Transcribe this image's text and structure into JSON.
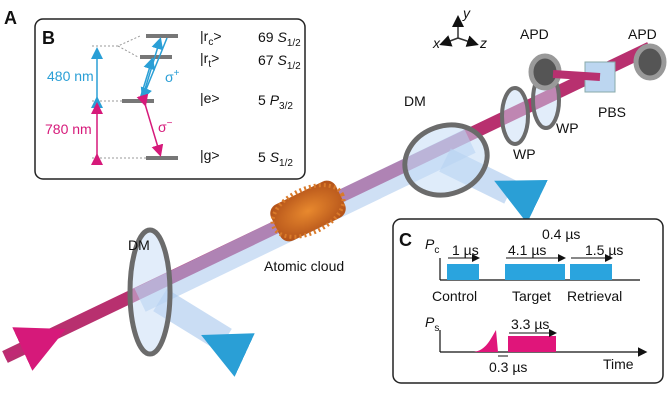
{
  "panel_labels": [
    "A",
    "B",
    "C"
  ],
  "energy_levels": {
    "levels": [
      {
        "state": [
          "|r",
          "c",
          ">"
        ],
        "term": [
          "69 ",
          "S",
          "1/2"
        ]
      },
      {
        "state": [
          "|r",
          "t",
          ">"
        ],
        "term": [
          "67 ",
          "S",
          "1/2"
        ]
      },
      {
        "state": [
          "|e>"
        ],
        "term": [
          "5 ",
          "P",
          "3/2"
        ]
      },
      {
        "state": [
          "|g>"
        ],
        "term": [
          "5 ",
          "S",
          "1/2"
        ]
      }
    ],
    "wavelengths": [
      "480 nm",
      "780 nm"
    ],
    "polarizations": [
      [
        "σ",
        "+"
      ],
      [
        "σ",
        "−"
      ]
    ]
  },
  "setup": {
    "axes": [
      "x",
      "y",
      "z"
    ],
    "labels": {
      "apd_left": "APD",
      "apd_right": "APD",
      "pbs": "PBS",
      "wp_1": "WP",
      "wp_2": "WP",
      "dm_right": "DM",
      "dm_left": "DM",
      "cloud": "Atomic cloud"
    }
  },
  "timing": {
    "control_axis": [
      "P",
      "c"
    ],
    "signal_axis": [
      "P",
      "s"
    ],
    "durations": [
      "1 µs",
      "4.1 µs",
      "0.4 µs",
      "1.5 µs"
    ],
    "pulses": [
      "Control",
      "Target",
      "Retrieval"
    ],
    "signal_duration": "3.3 µs",
    "delay": "0.3 µs",
    "time_label": "Time"
  }
}
